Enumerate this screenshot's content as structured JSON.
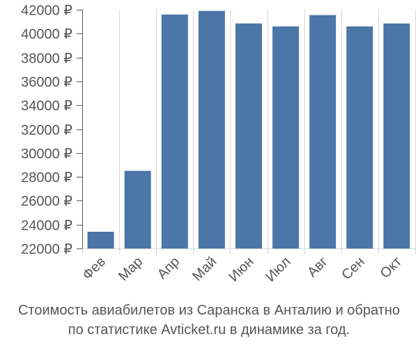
{
  "chart_data": {
    "type": "bar",
    "categories": [
      "Фев",
      "Мар",
      "Апр",
      "Май",
      "Июн",
      "Июл",
      "Авг",
      "Сен",
      "Окт"
    ],
    "values": [
      23400,
      28500,
      41600,
      41900,
      40850,
      40600,
      41550,
      40600,
      40850
    ],
    "y_ticks": [
      22000,
      24000,
      26000,
      28000,
      30000,
      32000,
      34000,
      36000,
      38000,
      40000,
      42000
    ],
    "y_tick_labels": [
      "22000 ₽",
      "24000 ₽",
      "26000 ₽",
      "28000 ₽",
      "30000 ₽",
      "32000 ₽",
      "34000 ₽",
      "36000 ₽",
      "38000 ₽",
      "40000 ₽",
      "42000 ₽"
    ],
    "ylim": [
      22000,
      42000
    ],
    "grid": "vertical",
    "legend": "none",
    "title": "",
    "xlabel": "",
    "ylabel": ""
  },
  "caption": {
    "line1": "Стоимость авиабилетов из Саранска в Анталию и обратно",
    "line2": "по статистике Avticket.ru в динамике за год."
  },
  "colors": {
    "bar": "#4a76a8",
    "grid": "#d5d5d5",
    "axis": "#555555",
    "text": "#555555"
  }
}
